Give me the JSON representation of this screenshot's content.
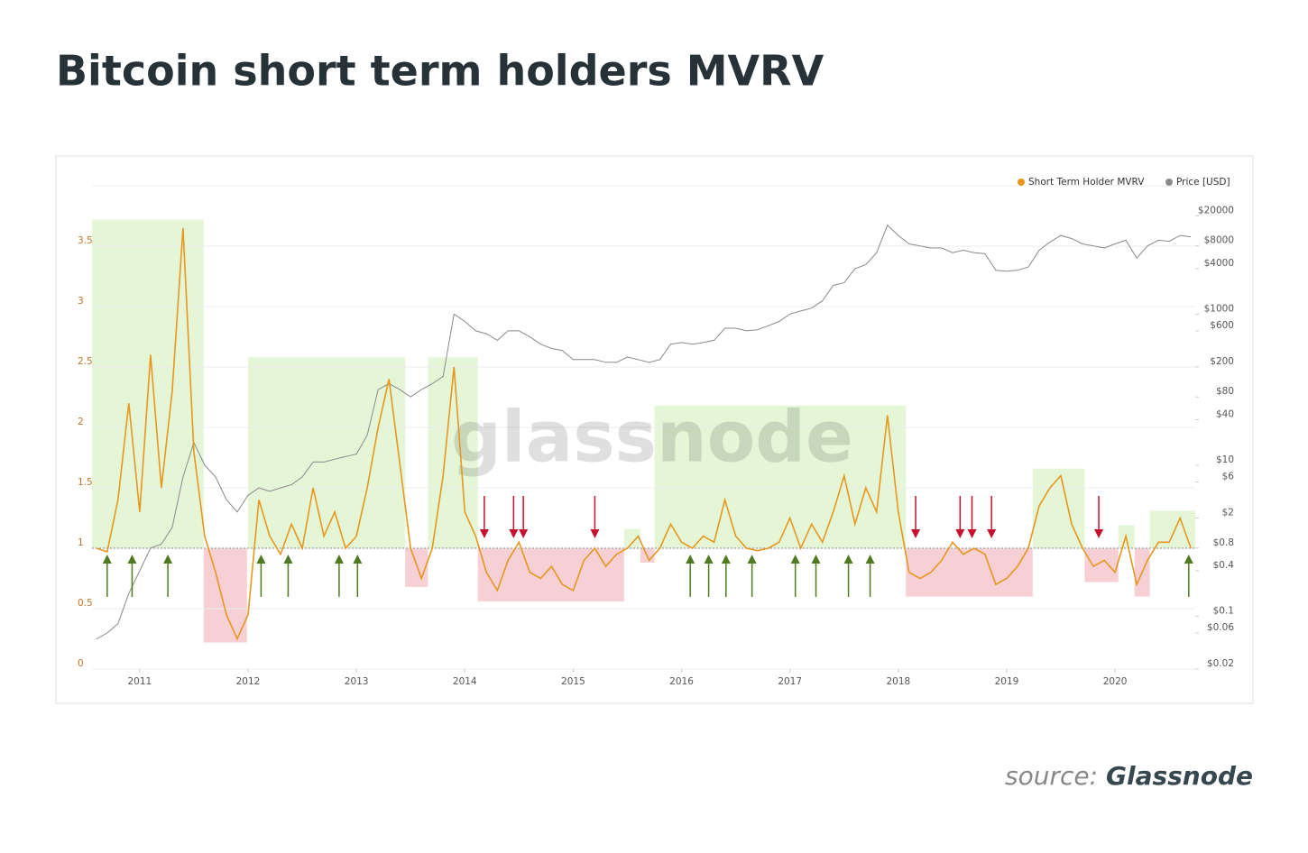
{
  "title": "Bitcoin short term holders MVRV",
  "source_prefix": "source:",
  "source_name": "Glassnode",
  "chart_data": {
    "type": "line",
    "watermark": "glassnode",
    "x": [
      2010.6,
      2010.7,
      2010.8,
      2010.9,
      2011.0,
      2011.1,
      2011.2,
      2011.3,
      2011.4,
      2011.5,
      2011.6,
      2011.7,
      2011.8,
      2011.9,
      2012.0,
      2012.1,
      2012.2,
      2012.3,
      2012.4,
      2012.5,
      2012.6,
      2012.7,
      2012.8,
      2012.9,
      2013.0,
      2013.1,
      2013.2,
      2013.3,
      2013.4,
      2013.5,
      2013.6,
      2013.7,
      2013.8,
      2013.9,
      2014.0,
      2014.1,
      2014.2,
      2014.3,
      2014.4,
      2014.5,
      2014.6,
      2014.7,
      2014.8,
      2014.9,
      2015.0,
      2015.1,
      2015.2,
      2015.3,
      2015.4,
      2015.5,
      2015.6,
      2015.7,
      2015.8,
      2015.9,
      2016.0,
      2016.1,
      2016.2,
      2016.3,
      2016.4,
      2016.5,
      2016.6,
      2016.7,
      2016.8,
      2016.9,
      2017.0,
      2017.1,
      2017.2,
      2017.3,
      2017.4,
      2017.5,
      2017.6,
      2017.7,
      2017.8,
      2017.9,
      2018.0,
      2018.1,
      2018.2,
      2018.3,
      2018.4,
      2018.5,
      2018.6,
      2018.7,
      2018.8,
      2018.9,
      2019.0,
      2019.1,
      2019.2,
      2019.3,
      2019.4,
      2019.5,
      2019.6,
      2019.7,
      2019.8,
      2019.9,
      2020.0,
      2020.1,
      2020.2,
      2020.3,
      2020.4,
      2020.5,
      2020.6,
      2020.7
    ],
    "series": [
      {
        "name": "Short Term Holder MVRV",
        "color": "#e8961e",
        "axis": "y",
        "values": [
          1.0,
          0.97,
          1.4,
          2.2,
          1.3,
          2.6,
          1.5,
          2.3,
          3.65,
          1.8,
          1.1,
          0.8,
          0.45,
          0.25,
          0.45,
          1.4,
          1.1,
          0.95,
          1.2,
          1.0,
          1.5,
          1.1,
          1.3,
          1.0,
          1.1,
          1.5,
          2.0,
          2.4,
          1.7,
          1.0,
          0.75,
          1.0,
          1.6,
          2.5,
          1.3,
          1.1,
          0.8,
          0.65,
          0.9,
          1.05,
          0.8,
          0.75,
          0.85,
          0.7,
          0.65,
          0.9,
          1.0,
          0.85,
          0.95,
          1.0,
          1.1,
          0.9,
          1.0,
          1.2,
          1.05,
          1.0,
          1.1,
          1.05,
          1.4,
          1.1,
          1.0,
          0.98,
          1.0,
          1.05,
          1.25,
          1.0,
          1.2,
          1.05,
          1.3,
          1.6,
          1.2,
          1.5,
          1.3,
          2.1,
          1.3,
          0.8,
          0.75,
          0.8,
          0.9,
          1.05,
          0.95,
          1.0,
          0.95,
          0.7,
          0.75,
          0.85,
          1.0,
          1.35,
          1.5,
          1.6,
          1.2,
          1.0,
          0.85,
          0.9,
          0.8,
          1.1,
          0.7,
          0.9,
          1.05,
          1.05,
          1.25,
          1.0
        ]
      },
      {
        "name": "Price [USD]",
        "color": "#8a8a8a",
        "axis": "y2",
        "values": [
          0.05,
          0.06,
          0.08,
          0.2,
          0.4,
          0.8,
          0.9,
          1.5,
          7,
          20,
          10,
          7,
          3.5,
          2.4,
          4,
          5,
          4.5,
          5,
          5.5,
          7,
          11,
          11,
          12,
          13,
          14,
          25,
          100,
          120,
          100,
          80,
          100,
          120,
          150,
          1000,
          800,
          600,
          550,
          450,
          600,
          600,
          500,
          400,
          350,
          330,
          250,
          250,
          250,
          230,
          230,
          270,
          250,
          230,
          250,
          400,
          420,
          400,
          420,
          450,
          650,
          650,
          600,
          620,
          700,
          800,
          1000,
          1100,
          1200,
          1500,
          2400,
          2600,
          4000,
          4500,
          6500,
          15000,
          11000,
          8500,
          8000,
          7500,
          7500,
          6500,
          7000,
          6500,
          6300,
          3800,
          3700,
          3800,
          4200,
          7000,
          9000,
          11000,
          10000,
          8500,
          8000,
          7500,
          8500,
          9500,
          5500,
          8000,
          9500,
          9200,
          11000,
          10500
        ]
      }
    ],
    "xlim": [
      2010.56,
      2020.74
    ],
    "xticks": [
      2011,
      2012,
      2013,
      2014,
      2015,
      2016,
      2017,
      2018,
      2019,
      2020
    ],
    "ylim": [
      0,
      4
    ],
    "yticks": [
      0,
      0.5,
      1,
      1.5,
      2,
      2.5,
      3,
      3.5
    ],
    "y2lim": [
      0.02,
      50000
    ],
    "y2_log": true,
    "y2ticks": [
      {
        "value": 20000,
        "label": "$20000"
      },
      {
        "value": 8000,
        "label": "$8000"
      },
      {
        "value": 4000,
        "label": "$4000"
      },
      {
        "value": 1000,
        "label": "$1000"
      },
      {
        "value": 600,
        "label": "$600"
      },
      {
        "value": 200,
        "label": "$200"
      },
      {
        "value": 80,
        "label": "$80"
      },
      {
        "value": 40,
        "label": "$40"
      },
      {
        "value": 10,
        "label": "$10"
      },
      {
        "value": 6,
        "label": "$6"
      },
      {
        "value": 2,
        "label": "$2"
      },
      {
        "value": 0.8,
        "label": "$0.8"
      },
      {
        "value": 0.4,
        "label": "$0.4"
      },
      {
        "value": 0.1,
        "label": "$0.1"
      },
      {
        "value": 0.06,
        "label": "$0.06"
      },
      {
        "value": 0.02,
        "label": "$0.02"
      }
    ],
    "grid": true,
    "reference_line": 1,
    "legend": "top-right",
    "shaded_periods": [
      {
        "x": [
          2010.56,
          2011.59
        ],
        "y": [
          1,
          3.72
        ],
        "color": "#e4f6d6"
      },
      {
        "x": [
          2012.0,
          2013.45
        ],
        "y": [
          1,
          2.58
        ],
        "color": "#e4f6d6"
      },
      {
        "x": [
          2013.66,
          2014.12
        ],
        "y": [
          1,
          2.58
        ],
        "color": "#e4f6d6"
      },
      {
        "x": [
          2015.47,
          2015.62
        ],
        "y": [
          1,
          1.16
        ],
        "color": "#e4f6d6"
      },
      {
        "x": [
          2015.75,
          2018.07
        ],
        "y": [
          1,
          2.18
        ],
        "color": "#e4f6d6"
      },
      {
        "x": [
          2019.24,
          2019.72
        ],
        "y": [
          1,
          1.66
        ],
        "color": "#e4f6d6"
      },
      {
        "x": [
          2020.03,
          2020.18
        ],
        "y": [
          1,
          1.19
        ],
        "color": "#e4f6d6"
      },
      {
        "x": [
          2020.32,
          2020.74
        ],
        "y": [
          1,
          1.31
        ],
        "color": "#e4f6d6"
      },
      {
        "x": [
          2011.59,
          2011.99
        ],
        "y": [
          0.22,
          1
        ],
        "color": "#f6d0d4"
      },
      {
        "x": [
          2013.45,
          2013.66
        ],
        "y": [
          0.68,
          1
        ],
        "color": "#f6d0d4"
      },
      {
        "x": [
          2014.12,
          2015.47
        ],
        "y": [
          0.56,
          1
        ],
        "color": "#f6d0d4"
      },
      {
        "x": [
          2015.62,
          2015.75
        ],
        "y": [
          0.88,
          1
        ],
        "color": "#f6d0d4"
      },
      {
        "x": [
          2018.07,
          2019.24
        ],
        "y": [
          0.6,
          1
        ],
        "color": "#f6d0d4"
      },
      {
        "x": [
          2019.72,
          2020.03
        ],
        "y": [
          0.72,
          1
        ],
        "color": "#f6d0d4"
      },
      {
        "x": [
          2020.18,
          2020.32
        ],
        "y": [
          0.6,
          1
        ],
        "color": "#f6d0d4"
      }
    ],
    "up_arrows": {
      "color": "#4f7a1f",
      "x": [
        2010.7,
        2010.93,
        2011.26,
        2012.12,
        2012.37,
        2012.84,
        2013.01,
        2016.08,
        2016.25,
        2016.41,
        2016.65,
        2017.05,
        2017.24,
        2017.54,
        2017.74,
        2020.68
      ]
    },
    "down_arrows": {
      "color": "#c8102e",
      "x": [
        2014.18,
        2014.45,
        2014.54,
        2015.2,
        2018.16,
        2018.57,
        2018.68,
        2018.86,
        2019.85
      ]
    }
  }
}
